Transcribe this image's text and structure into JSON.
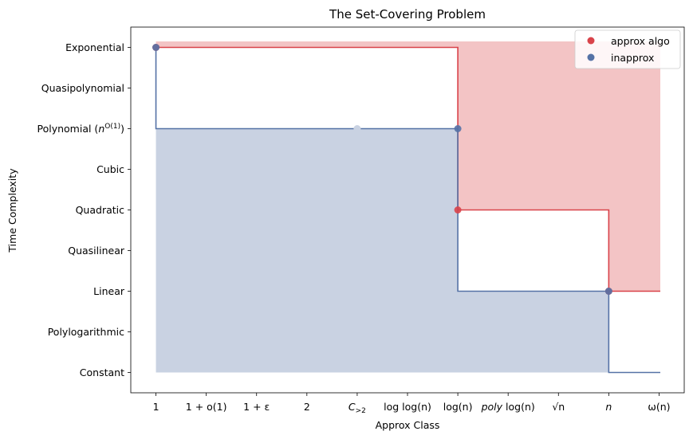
{
  "chart_data": {
    "type": "line",
    "title": "The Set-Covering Problem",
    "xlabel": "Approx Class",
    "ylabel": "Time Complexity",
    "categories": [
      "1",
      "1 + o(1)",
      "1 + ε",
      "2",
      "C>2",
      "log log(n)",
      "log(n)",
      "poly log(n)",
      "√n",
      "n",
      "ω(n)"
    ],
    "y_levels": [
      "Constant",
      "Polylogarithmic",
      "Linear",
      "Quasilinear",
      "Quadratic",
      "Cubic",
      "Polynomial (n^O(1))",
      "Quasipolynomial",
      "Exponential"
    ],
    "y_tick_display": [
      {
        "text": "Constant"
      },
      {
        "text": "Polylogarithmic"
      },
      {
        "text": "Linear"
      },
      {
        "text": "Quasilinear"
      },
      {
        "text": "Quadratic"
      },
      {
        "text": "Cubic"
      },
      {
        "text": "Polynomial (",
        "it": "n",
        "sup": "O(1)",
        "tail": ")"
      },
      {
        "text": "Quasipolynomial"
      },
      {
        "text": "Exponential"
      }
    ],
    "x_tick_display": [
      {
        "text": "1"
      },
      {
        "text": "1 + o(1)"
      },
      {
        "text": "1 + ε"
      },
      {
        "text": "2"
      },
      {
        "it": "C",
        "sub": ">2"
      },
      {
        "text": "log log(n)"
      },
      {
        "text": "log(n)"
      },
      {
        "it": "poly",
        "text": "log(n)"
      },
      {
        "text": "√n"
      },
      {
        "it": "n"
      },
      {
        "text": "ω(n)"
      }
    ],
    "xlim": [
      -0.5,
      10.5
    ],
    "ylim": [
      -0.5,
      8.5
    ],
    "series": [
      {
        "name": "approx algo",
        "color": "#d9434a",
        "fill_color": "#f3c4c5",
        "step": [
          [
            0,
            8
          ],
          [
            6,
            8
          ],
          [
            6,
            4
          ],
          [
            9,
            4
          ],
          [
            9,
            2
          ],
          [
            10.5,
            2
          ]
        ],
        "points": [
          [
            0,
            8
          ],
          [
            6,
            4
          ],
          [
            9,
            2
          ]
        ]
      },
      {
        "name": "inapprox",
        "color": "#5572a6",
        "fill_color": "#c9d2e2",
        "step": [
          [
            0,
            8
          ],
          [
            0,
            6
          ],
          [
            6,
            6
          ],
          [
            6,
            2
          ],
          [
            9,
            2
          ],
          [
            9,
            0
          ],
          [
            10.5,
            0
          ]
        ],
        "points": [
          [
            0,
            8
          ],
          [
            6,
            6
          ],
          [
            9,
            2
          ]
        ]
      }
    ],
    "faint_points": [
      {
        "x": 4,
        "y": 6,
        "color": "#c9d2e2"
      },
      {
        "x": 8.95,
        "y": 6,
        "color": "#f3c4c5"
      },
      {
        "x": 9.05,
        "y": 6,
        "color": "#f3c4c5"
      }
    ],
    "legend": {
      "position": "top-right",
      "entries": [
        "approx algo",
        "inapprox"
      ]
    },
    "grid": false
  }
}
